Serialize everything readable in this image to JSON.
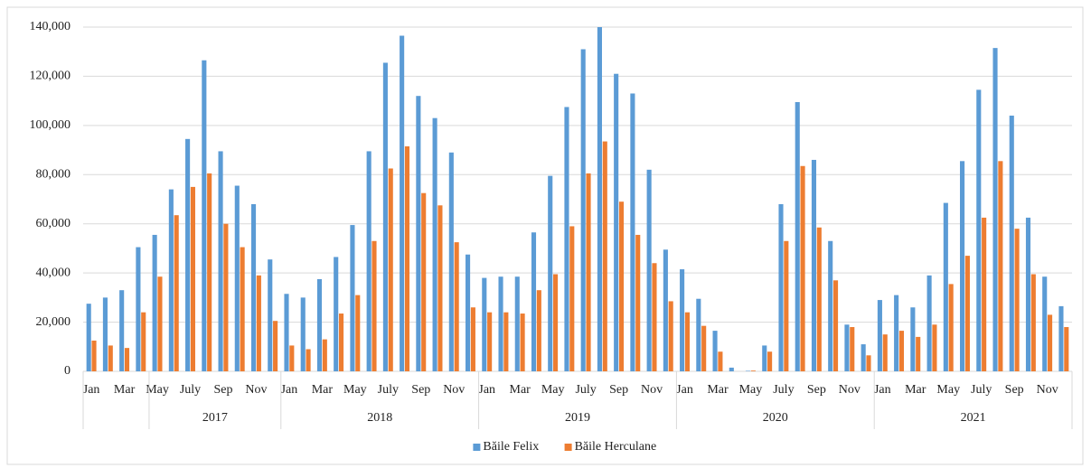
{
  "chart_data": {
    "type": "bar",
    "categories": [
      "Jan",
      null,
      "Mar",
      null,
      "May",
      null,
      "July",
      null,
      "Sep",
      null,
      "Nov",
      null,
      "Jan",
      null,
      "Mar",
      null,
      "May",
      null,
      "July",
      null,
      "Sep",
      null,
      "Nov",
      null,
      "Jan",
      null,
      "Mar",
      null,
      "May",
      null,
      "July",
      null,
      "Sep",
      null,
      "Nov",
      null,
      "Jan",
      null,
      "Mar",
      null,
      "May",
      null,
      "July",
      null,
      "Sep",
      null,
      "Nov",
      null,
      "Jan",
      null,
      "Mar",
      null,
      "May",
      null,
      "July",
      null,
      "Sep",
      null,
      "Nov",
      null
    ],
    "years": [
      null,
      null,
      null,
      null,
      "2017",
      "2017",
      "2017",
      "2017",
      "2017",
      "2017",
      "2017",
      "2017",
      "2018",
      "2018",
      "2018",
      "2018",
      "2018",
      "2018",
      "2018",
      "2018",
      "2018",
      "2018",
      "2018",
      "2018",
      "2019",
      "2019",
      "2019",
      "2019",
      "2019",
      "2019",
      "2019",
      "2019",
      "2019",
      "2019",
      "2019",
      "2019",
      "2020",
      "2020",
      "2020",
      "2020",
      "2020",
      "2020",
      "2020",
      "2020",
      "2020",
      "2020",
      "2020",
      "2020",
      "2021",
      "2021",
      "2021",
      "2021",
      "2021",
      "2021",
      "2021",
      "2021",
      "2021",
      "2021",
      "2021",
      "2021"
    ],
    "series": [
      {
        "name": "Băile Felix",
        "color": "#5b9bd5",
        "values": [
          27500,
          30000,
          33000,
          50500,
          55500,
          74000,
          94500,
          126500,
          89500,
          75500,
          68000,
          45500,
          31500,
          30000,
          37500,
          46500,
          59500,
          89500,
          125500,
          136500,
          112000,
          103000,
          89000,
          47500,
          38000,
          38500,
          38500,
          56500,
          79500,
          107500,
          131000,
          140000,
          121000,
          113000,
          82000,
          49500,
          41500,
          29500,
          16500,
          1500,
          200,
          10500,
          68000,
          109500,
          86000,
          53000,
          19000,
          11000,
          29000,
          31000,
          26000,
          39000,
          68500,
          85500,
          114500,
          131500,
          104000,
          62500,
          38500,
          26500
        ]
      },
      {
        "name": "Băile Herculane",
        "color": "#ed7d31",
        "values": [
          12500,
          10500,
          9500,
          24000,
          38500,
          63500,
          75000,
          80500,
          60000,
          50500,
          39000,
          20500,
          10500,
          9000,
          13000,
          23500,
          31000,
          53000,
          82500,
          91500,
          72500,
          67500,
          52500,
          26000,
          24000,
          24000,
          23500,
          33000,
          39500,
          59000,
          80500,
          93500,
          69000,
          55500,
          44000,
          28500,
          24000,
          18500,
          8000,
          0,
          300,
          8000,
          53000,
          83500,
          58500,
          37000,
          18000,
          6500,
          15000,
          16500,
          14000,
          19000,
          35500,
          47000,
          62500,
          85500,
          58000,
          39500,
          23000,
          18000
        ]
      }
    ],
    "ylim": [
      0,
      140000
    ],
    "yticks": [
      0,
      {
        "value": 20000,
        "label": "20,000"
      },
      {
        "value": 40000,
        "label": "40,000"
      },
      {
        "value": 60000,
        "label": "60,000"
      },
      {
        "value": 80000,
        "label": "80,000"
      },
      {
        "value": 100000,
        "label": "100,000"
      },
      {
        "value": 120000,
        "label": "120,000"
      },
      {
        "value": 140000,
        "label": "140,000"
      }
    ],
    "grid": true,
    "legend": "bottom"
  }
}
